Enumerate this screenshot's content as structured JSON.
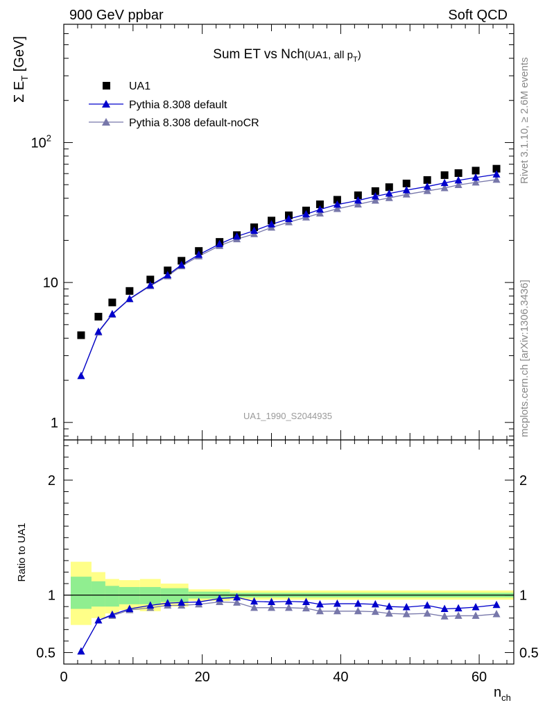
{
  "header": {
    "left": "900 GeV ppbar",
    "right": "Soft QCD"
  },
  "side_text": {
    "top": "Rivet 3.1.10, ≥ 2.6M events",
    "bottom": "mcplots.cern.ch [arXiv:1306.3436]"
  },
  "watermark": "UA1_1990_S2044935",
  "colors": {
    "data": "#000000",
    "default": "#0000cc",
    "nocr": "#7777aa",
    "band_inner": "#90ee90",
    "band_outer": "#ffff88"
  },
  "chart_data": [
    {
      "type": "scatter",
      "title": "Sum ET vs Nch",
      "title_suffix": "(UA1, all p",
      "title_sub": "T",
      "title_close": ")",
      "ylabel_sigma": "Σ E",
      "ylabel_sub": "T",
      "ylabel_unit": " [GeV]",
      "yscale": "log",
      "ylim": [
        0.75,
        700
      ],
      "xlim": [
        0,
        65
      ],
      "yticks": [
        {
          "v": 1,
          "label": "1"
        },
        {
          "v": 10,
          "label": "10"
        },
        {
          "v": 100,
          "label": "10",
          "sup": "2"
        }
      ],
      "legend": {
        "position": "top-left",
        "entries": [
          "UA1",
          "Pythia 8.308 default",
          "Pythia 8.308 default-noCR"
        ]
      },
      "x": [
        2.5,
        5,
        7,
        9.5,
        12.5,
        15,
        17,
        19.5,
        22.5,
        25,
        27.5,
        30,
        32.5,
        35,
        37,
        39.5,
        42.5,
        45,
        47,
        49.5,
        52.5,
        55,
        57,
        59.5,
        62.5
      ],
      "series": [
        {
          "name": "UA1",
          "values": [
            4.2,
            5.7,
            7.2,
            8.7,
            10.5,
            12.2,
            14.3,
            16.8,
            19.5,
            21.8,
            24.8,
            27.7,
            30.2,
            32.7,
            36.2,
            39.0,
            42.0,
            45.0,
            48.0,
            51.0,
            54.0,
            58.5,
            60.5,
            63.0,
            65.0
          ]
        },
        {
          "name": "Pythia 8.308 default",
          "values": [
            2.15,
            4.45,
            5.95,
            7.65,
            9.55,
            11.3,
            13.35,
            15.8,
            18.85,
            21.35,
            23.45,
            26.05,
            28.45,
            30.75,
            33.25,
            36.05,
            38.55,
            41.25,
            43.25,
            45.7,
            48.5,
            51.5,
            53.7,
            56.2,
            59.3
          ]
        },
        {
          "name": "Pythia 8.308 default-noCR",
          "values": [
            2.15,
            4.4,
            5.9,
            7.6,
            9.45,
            11.1,
            13.1,
            15.4,
            18.3,
            20.4,
            22.2,
            24.7,
            27.0,
            29.2,
            31.2,
            33.6,
            36.2,
            38.5,
            40.2,
            42.6,
            45.1,
            47.3,
            49.8,
            51.9,
            54.3
          ]
        }
      ]
    },
    {
      "type": "line",
      "ylabel": "Ratio to UA1",
      "xlabel": "n",
      "xlabel_sub": "ch",
      "ylim": [
        0.4,
        2.35
      ],
      "xlim": [
        0,
        65
      ],
      "yticks": [
        {
          "v": 0.5,
          "label": "0.5"
        },
        {
          "v": 1,
          "label": "1"
        },
        {
          "v": 2,
          "label": "2"
        }
      ],
      "xticks": [
        {
          "v": 0,
          "label": "0"
        },
        {
          "v": 20,
          "label": "20"
        },
        {
          "v": 40,
          "label": "40"
        },
        {
          "v": 60,
          "label": "60"
        }
      ],
      "reference_line": 1,
      "bands": [
        {
          "x0": 1,
          "x1": 4,
          "inner": [
            0.88,
            1.16
          ],
          "outer": [
            0.74,
            1.29
          ]
        },
        {
          "x0": 4,
          "x1": 6,
          "inner": [
            0.9,
            1.12
          ],
          "outer": [
            0.8,
            1.2
          ]
        },
        {
          "x0": 6,
          "x1": 8,
          "inner": [
            0.9,
            1.08
          ],
          "outer": [
            0.84,
            1.14
          ]
        },
        {
          "x0": 8,
          "x1": 11,
          "inner": [
            0.92,
            1.07
          ],
          "outer": [
            0.87,
            1.13
          ]
        },
        {
          "x0": 11,
          "x1": 14,
          "inner": [
            0.92,
            1.07
          ],
          "outer": [
            0.86,
            1.14
          ]
        },
        {
          "x0": 14,
          "x1": 18,
          "inner": [
            0.94,
            1.06
          ],
          "outer": [
            0.9,
            1.1
          ]
        },
        {
          "x0": 18,
          "x1": 24,
          "inner": [
            0.97,
            1.03
          ],
          "outer": [
            0.95,
            1.05
          ]
        },
        {
          "x0": 24,
          "x1": 65,
          "inner": [
            0.98,
            1.02
          ],
          "outer": [
            0.96,
            1.04
          ]
        }
      ],
      "x": [
        2.5,
        5,
        7,
        9.5,
        12.5,
        15,
        17,
        19.5,
        22.5,
        25,
        27.5,
        30,
        32.5,
        35,
        37,
        39.5,
        42.5,
        45,
        47,
        49.5,
        52.5,
        55,
        57,
        59.5,
        62.5
      ],
      "series": [
        {
          "name": "Pythia 8.308 default",
          "values": [
            0.51,
            0.78,
            0.83,
            0.88,
            0.91,
            0.93,
            0.935,
            0.94,
            0.97,
            0.98,
            0.945,
            0.94,
            0.945,
            0.94,
            0.92,
            0.925,
            0.925,
            0.92,
            0.9,
            0.895,
            0.91,
            0.88,
            0.885,
            0.895,
            0.915
          ]
        },
        {
          "name": "Pythia 8.308 default-noCR",
          "values": [
            0.51,
            0.78,
            0.82,
            0.87,
            0.89,
            0.91,
            0.91,
            0.92,
            0.94,
            0.935,
            0.89,
            0.89,
            0.89,
            0.885,
            0.86,
            0.86,
            0.86,
            0.855,
            0.84,
            0.835,
            0.84,
            0.815,
            0.82,
            0.82,
            0.835
          ]
        }
      ]
    }
  ]
}
